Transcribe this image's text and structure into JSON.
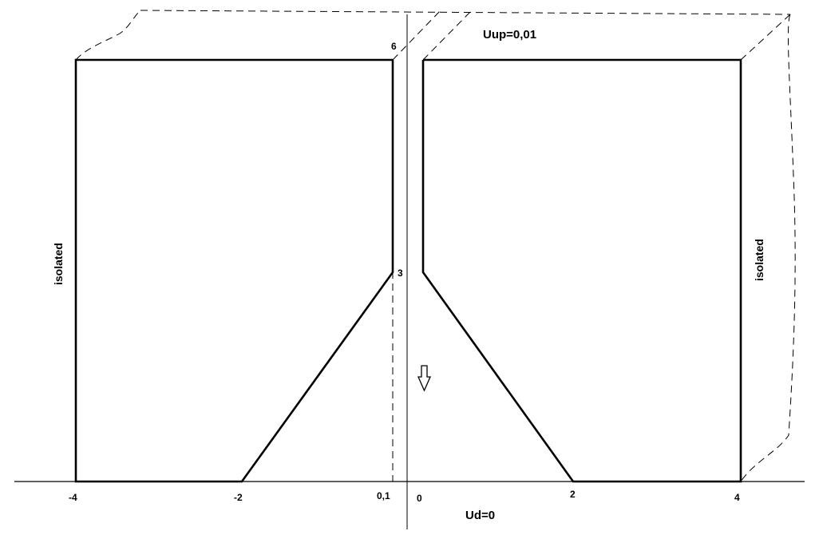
{
  "labels": {
    "top_height": "6",
    "mid_height": "3",
    "boundary_top": "Uup=0,01",
    "boundary_bottom": "Ud=0",
    "left_side": "isolated",
    "right_side": "isolated",
    "x_ticks": [
      "-4",
      "-2",
      "0,1",
      "0",
      "2",
      "4"
    ]
  },
  "colors": {
    "stroke": "#000000",
    "background": "#ffffff"
  },
  "icons": {
    "flow_arrow": "down-arrow-icon"
  }
}
